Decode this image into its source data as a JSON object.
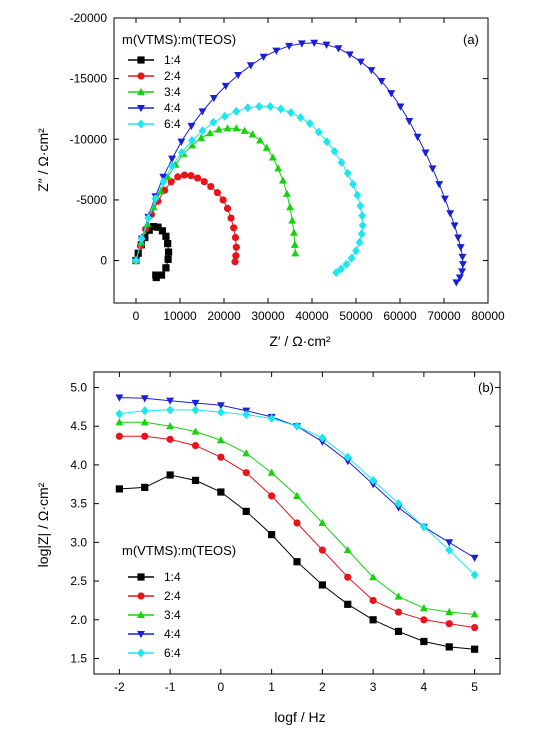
{
  "colors": {
    "1:4": "#000000",
    "2:4": "#e8141b",
    "3:4": "#16d20f",
    "4:4": "#1a20d6",
    "6:4": "#1ee6ee"
  },
  "chart_data": [
    {
      "type": "scatter",
      "panel_label": "(a)",
      "xlabel": "Z′ / Ω·cm²",
      "ylabel": "Z″ / Ω·cm²",
      "xlim": [
        -5000,
        80000
      ],
      "ylim": [
        3500,
        -20000
      ],
      "y_reversed": true,
      "xticks": [
        0,
        10000,
        20000,
        30000,
        40000,
        50000,
        60000,
        70000,
        80000
      ],
      "yticks": [
        0,
        -5000,
        -10000,
        -15000,
        -20000
      ],
      "legend_title": "m(VTMS):m(TEOS)",
      "legend_position": "top-left",
      "series": [
        {
          "name": "1:4",
          "marker": "square",
          "x": [
            0,
            500,
            1200,
            2000,
            3000,
            4000,
            5000,
            6000,
            6800,
            7200,
            7400,
            7300,
            6800,
            5800,
            4600,
            4500
          ],
          "y": [
            0,
            -600,
            -1300,
            -1900,
            -2500,
            -2800,
            -2750,
            -2450,
            -2000,
            -1400,
            -700,
            -100,
            600,
            1200,
            1400,
            1200
          ]
        },
        {
          "name": "2:4",
          "marker": "circle",
          "x": [
            0,
            1000,
            2200,
            3500,
            5000,
            6500,
            8000,
            9500,
            11000,
            12500,
            14000,
            15500,
            17000,
            18500,
            19800,
            20800,
            21600,
            22200,
            22600,
            22800,
            22700,
            22500
          ],
          "y": [
            0,
            -1200,
            -2600,
            -3800,
            -4900,
            -5800,
            -6500,
            -6900,
            -7050,
            -7000,
            -6800,
            -6500,
            -6100,
            -5600,
            -5000,
            -4300,
            -3500,
            -2700,
            -1900,
            -1100,
            -400,
            100
          ]
        },
        {
          "name": "3:4",
          "marker": "triangle-up",
          "x": [
            0,
            1200,
            2600,
            4000,
            5600,
            7200,
            9000,
            10800,
            12800,
            14800,
            16800,
            18800,
            20800,
            22800,
            24700,
            26500,
            28200,
            29700,
            31100,
            32300,
            33400,
            34300,
            35000,
            35500,
            35900,
            36100,
            36200
          ],
          "y": [
            0,
            -1500,
            -3000,
            -4400,
            -5700,
            -6900,
            -7900,
            -8800,
            -9500,
            -10100,
            -10500,
            -10800,
            -10900,
            -10900,
            -10700,
            -10400,
            -9900,
            -9300,
            -8500,
            -7600,
            -6600,
            -5500,
            -4400,
            -3300,
            -2300,
            -1300,
            -600
          ]
        },
        {
          "name": "4:4",
          "marker": "triangle-down",
          "x": [
            0,
            1300,
            2800,
            4400,
            6200,
            8200,
            10300,
            12600,
            15100,
            17700,
            20400,
            23200,
            26100,
            29000,
            31900,
            34800,
            37700,
            40500,
            43300,
            46000,
            48600,
            51100,
            53500,
            55800,
            58000,
            60100,
            62100,
            64000,
            65800,
            67400,
            68900,
            70200,
            71400,
            72400,
            73200,
            73800,
            74200,
            74300,
            74100,
            73600,
            72800
          ],
          "y": [
            0,
            -1800,
            -3600,
            -5300,
            -6900,
            -8400,
            -9800,
            -11100,
            -12300,
            -13400,
            -14400,
            -15300,
            -16100,
            -16800,
            -17300,
            -17700,
            -17900,
            -17950,
            -17800,
            -17500,
            -17000,
            -16400,
            -15700,
            -14800,
            -13800,
            -12700,
            -11500,
            -10200,
            -8900,
            -7600,
            -6300,
            -5100,
            -3900,
            -2900,
            -1900,
            -1100,
            -300,
            300,
            900,
            1400,
            1800
          ]
        },
        {
          "name": "6:4",
          "marker": "diamond",
          "x": [
            0,
            1300,
            2800,
            4400,
            6200,
            8200,
            10400,
            12700,
            15100,
            17600,
            20200,
            22800,
            25400,
            28000,
            30500,
            32900,
            35200,
            37400,
            39500,
            41500,
            43400,
            45100,
            46700,
            48100,
            49300,
            50300,
            51000,
            51400,
            51500,
            51300,
            50800,
            50000,
            49000,
            47800,
            46600,
            45500
          ],
          "y": [
            0,
            -1800,
            -3500,
            -5100,
            -6500,
            -7800,
            -8900,
            -9900,
            -10700,
            -11400,
            -11900,
            -12300,
            -12600,
            -12700,
            -12700,
            -12500,
            -12200,
            -11800,
            -11300,
            -10600,
            -9800,
            -9000,
            -8100,
            -7200,
            -6300,
            -5400,
            -4500,
            -3700,
            -2900,
            -2200,
            -1500,
            -800,
            -200,
            300,
            700,
            1000
          ]
        }
      ]
    },
    {
      "type": "scatter",
      "panel_label": "(b)",
      "xlabel": "logf / Hz",
      "ylabel": "log|Z| / Ω·cm²",
      "xlim": [
        -2.5,
        5.5
      ],
      "ylim": [
        1.3,
        5.2
      ],
      "xticks": [
        -2,
        -1,
        0,
        1,
        2,
        3,
        4,
        5
      ],
      "yticks": [
        1.5,
        2.0,
        2.5,
        3.0,
        3.5,
        4.0,
        4.5,
        5.0
      ],
      "legend_title": "m(VTMS):m(TEOS)",
      "legend_position": "lower-left",
      "series": [
        {
          "name": "1:4",
          "marker": "square",
          "x": [
            -2,
            -1.5,
            -1,
            -0.5,
            0,
            0.5,
            1,
            1.5,
            2,
            2.5,
            3,
            3.5,
            4,
            4.5,
            5
          ],
          "y": [
            3.69,
            3.71,
            3.87,
            3.8,
            3.65,
            3.4,
            3.1,
            2.75,
            2.45,
            2.2,
            2.0,
            1.85,
            1.72,
            1.65,
            1.62
          ]
        },
        {
          "name": "2:4",
          "marker": "circle",
          "x": [
            -2,
            -1.5,
            -1,
            -0.5,
            0,
            0.5,
            1,
            1.5,
            2,
            2.5,
            3,
            3.5,
            4,
            4.5,
            5
          ],
          "y": [
            4.37,
            4.37,
            4.33,
            4.25,
            4.1,
            3.9,
            3.6,
            3.25,
            2.9,
            2.55,
            2.25,
            2.1,
            2.0,
            1.95,
            1.9
          ]
        },
        {
          "name": "3:4",
          "marker": "triangle-up",
          "x": [
            -2,
            -1.5,
            -1,
            -0.5,
            0,
            0.5,
            1,
            1.5,
            2,
            2.5,
            3,
            3.5,
            4,
            4.5,
            5
          ],
          "y": [
            4.55,
            4.55,
            4.5,
            4.43,
            4.32,
            4.15,
            3.9,
            3.6,
            3.25,
            2.9,
            2.55,
            2.3,
            2.15,
            2.1,
            2.07
          ]
        },
        {
          "name": "4:4",
          "marker": "triangle-down",
          "x": [
            -2,
            -1.5,
            -1,
            -0.5,
            0,
            0.5,
            1,
            1.5,
            2,
            2.5,
            3,
            3.5,
            4,
            4.5,
            5
          ],
          "y": [
            4.87,
            4.86,
            4.83,
            4.8,
            4.77,
            4.7,
            4.62,
            4.5,
            4.3,
            4.05,
            3.75,
            3.45,
            3.2,
            3.0,
            2.8
          ]
        },
        {
          "name": "6:4",
          "marker": "diamond",
          "x": [
            -2,
            -1.5,
            -1,
            -0.5,
            0,
            0.5,
            1,
            1.5,
            2,
            2.5,
            3,
            3.5,
            4,
            4.5,
            5
          ],
          "y": [
            4.66,
            4.7,
            4.71,
            4.71,
            4.68,
            4.65,
            4.6,
            4.5,
            4.35,
            4.1,
            3.8,
            3.5,
            3.2,
            2.9,
            2.58
          ]
        }
      ]
    }
  ]
}
